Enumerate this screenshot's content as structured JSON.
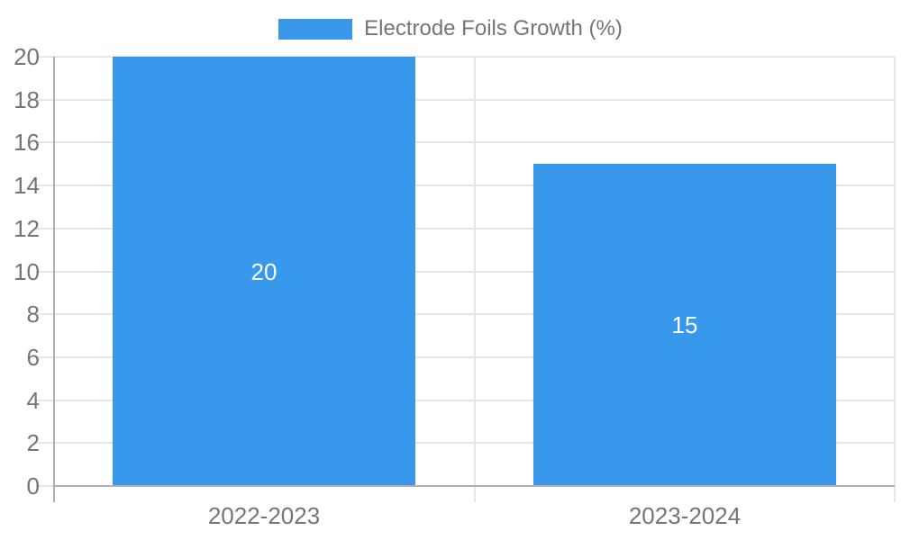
{
  "chart_data": {
    "type": "bar",
    "title": "",
    "categories": [
      "2022-2023",
      "2023-2024"
    ],
    "series": [
      {
        "name": "Electrode Foils Growth (%)",
        "values": [
          20,
          15
        ]
      }
    ],
    "xlabel": "",
    "ylabel": "",
    "ylim": [
      0,
      20
    ],
    "yticks": [
      0,
      2,
      4,
      6,
      8,
      10,
      12,
      14,
      16,
      18,
      20
    ],
    "grid": true,
    "legend_position": "top",
    "bar_value_labels_shown": true,
    "colors": {
      "bar": "#3898ec",
      "grid": "#e6e6e6",
      "axis": "#b0b0b0",
      "tick_text": "#757575",
      "legend_text": "#757575",
      "bar_label_text": "#ffffff",
      "background": "#ffffff"
    }
  }
}
